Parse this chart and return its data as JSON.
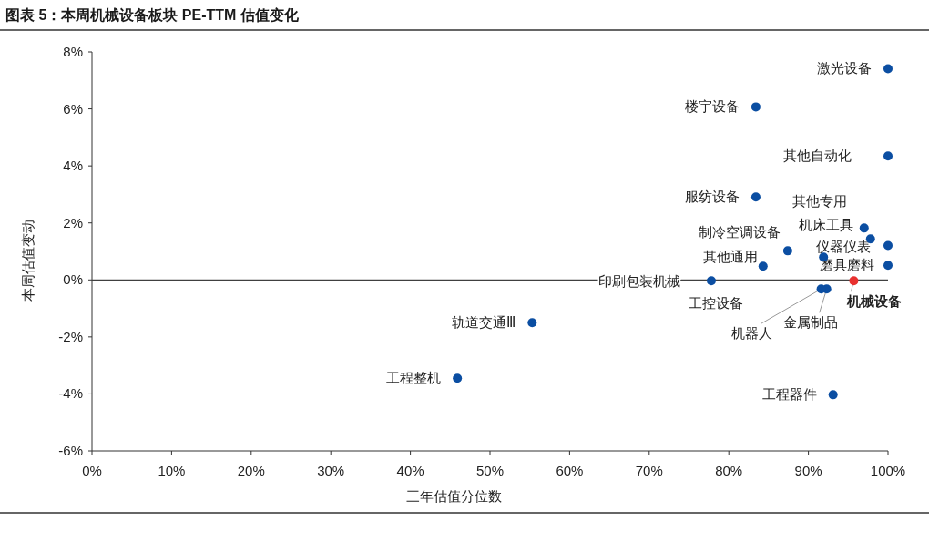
{
  "chart_data": {
    "type": "scatter",
    "title": "图表 5：本周机械设备板块 PE-TTM 估值变化",
    "xlabel": "三年估值分位数",
    "ylabel": "本周估值变动",
    "marker": "circle",
    "grid": false,
    "xlim": [
      0,
      100
    ],
    "ylim": [
      -6,
      8
    ],
    "xticks": [
      {
        "value": 0,
        "label": "0%"
      },
      {
        "value": 10,
        "label": "10%"
      },
      {
        "value": 20,
        "label": "20%"
      },
      {
        "value": 30,
        "label": "30%"
      },
      {
        "value": 40,
        "label": "40%"
      },
      {
        "value": 50,
        "label": "50%"
      },
      {
        "value": 60,
        "label": "60%"
      },
      {
        "value": 70,
        "label": "70%"
      },
      {
        "value": 80,
        "label": "80%"
      },
      {
        "value": 90,
        "label": "90%"
      },
      {
        "value": 100,
        "label": "100%"
      }
    ],
    "yticks": [
      {
        "value": -6,
        "label": "-6%"
      },
      {
        "value": -4,
        "label": "-4%"
      },
      {
        "value": -2,
        "label": "-2%"
      },
      {
        "value": 0,
        "label": "0%"
      },
      {
        "value": 2,
        "label": "2%"
      },
      {
        "value": 4,
        "label": "4%"
      },
      {
        "value": 6,
        "label": "6%"
      },
      {
        "value": 8,
        "label": "8%"
      }
    ],
    "ref_lines": [
      {
        "axis": "y",
        "value": 0,
        "color": "#404040"
      }
    ],
    "series": [
      {
        "color": "#0b4ea2",
        "x": [
          100,
          83.4,
          100,
          83.4,
          97.8,
          97.0,
          100,
          87.4,
          91.9,
          84.3,
          100,
          77.8,
          92.3,
          91.6,
          55.3,
          45.9,
          93.1
        ],
        "values": [
          7.41,
          6.07,
          4.35,
          2.91,
          1.44,
          1.82,
          1.21,
          1.02,
          0.8,
          0.48,
          0.51,
          -0.03,
          -0.32,
          -0.32,
          -1.5,
          -3.45,
          -4.03
        ]
      },
      {
        "color": "#e8312f",
        "x": [
          95.7
        ],
        "values": [
          -0.03
        ]
      }
    ],
    "annotations": [
      {
        "text": "激光设备",
        "x": 100,
        "y": 7.41
      },
      {
        "text": "楼宇设备",
        "x": 83.4,
        "y": 6.07
      },
      {
        "text": "其他自动化",
        "x": 100,
        "y": 4.35
      },
      {
        "text": "服纺设备",
        "x": 83.4,
        "y": 2.91
      },
      {
        "text": "其他专用",
        "x": 97.8,
        "y": 1.44
      },
      {
        "text": "机床工具",
        "x": 97.0,
        "y": 1.82
      },
      {
        "text": "仪器仪表",
        "x": 100,
        "y": 1.21
      },
      {
        "text": "制冷空调设备",
        "x": 87.4,
        "y": 1.02
      },
      {
        "text": "工控设备",
        "x": 77.8,
        "y": -0.03
      },
      {
        "text": "其他通用",
        "x": 84.3,
        "y": 0.48
      },
      {
        "text": "磨具磨料",
        "x": 100,
        "y": 0.51
      },
      {
        "text": "印刷包装机械",
        "x": 77.8,
        "y": -0.03
      },
      {
        "text": "金属制品",
        "x": 92.3,
        "y": -0.32
      },
      {
        "text": "机器人",
        "x": 91.6,
        "y": -0.32
      },
      {
        "text": "机械设备",
        "x": 95.7,
        "y": -0.03
      },
      {
        "text": "轨道交通Ⅲ",
        "x": 55.3,
        "y": -1.5
      },
      {
        "text": "工程整机",
        "x": 45.9,
        "y": -3.45
      },
      {
        "text": "工程器件",
        "x": 93.1,
        "y": -4.03
      }
    ]
  }
}
